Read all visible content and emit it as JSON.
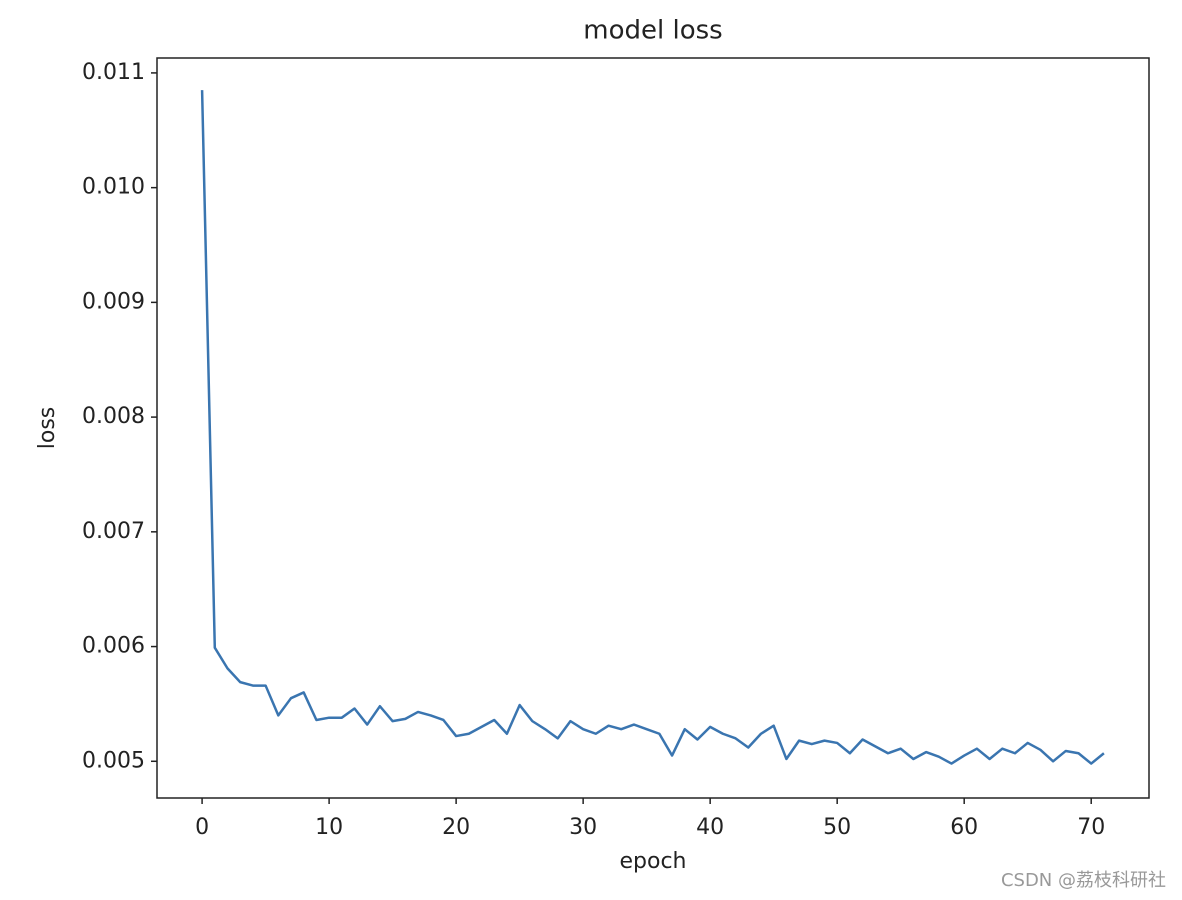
{
  "chart_data": {
    "type": "line",
    "title": "model loss",
    "x_label": "epoch",
    "y_label": "loss",
    "x": [
      0,
      1,
      2,
      3,
      4,
      5,
      6,
      7,
      8,
      9,
      10,
      11,
      12,
      13,
      14,
      15,
      16,
      17,
      18,
      19,
      20,
      21,
      22,
      23,
      24,
      25,
      26,
      27,
      28,
      29,
      30,
      31,
      32,
      33,
      34,
      35,
      36,
      37,
      38,
      39,
      40,
      41,
      42,
      43,
      44,
      45,
      46,
      47,
      48,
      49,
      50,
      51,
      52,
      53,
      54,
      55,
      56,
      57,
      58,
      59,
      60,
      61,
      62,
      63,
      64,
      65,
      66,
      67,
      68,
      69,
      70,
      71
    ],
    "series": [
      {
        "name": "loss",
        "color": "#3a75b0",
        "values": [
          0.01085,
          0.00599,
          0.00581,
          0.00569,
          0.00566,
          0.00566,
          0.0054,
          0.00555,
          0.0056,
          0.00536,
          0.00538,
          0.00538,
          0.00546,
          0.00532,
          0.00548,
          0.00535,
          0.00537,
          0.00543,
          0.0054,
          0.00536,
          0.00522,
          0.00524,
          0.0053,
          0.00536,
          0.00524,
          0.00549,
          0.00535,
          0.00528,
          0.0052,
          0.00535,
          0.00528,
          0.00524,
          0.00531,
          0.00528,
          0.00532,
          0.00528,
          0.00524,
          0.00505,
          0.00528,
          0.00519,
          0.0053,
          0.00524,
          0.0052,
          0.00512,
          0.00524,
          0.00531,
          0.00502,
          0.00518,
          0.00515,
          0.00518,
          0.00516,
          0.00507,
          0.00519,
          0.00513,
          0.00507,
          0.00511,
          0.00502,
          0.00508,
          0.00504,
          0.00498,
          0.00505,
          0.00511,
          0.00502,
          0.00511,
          0.00507,
          0.00516,
          0.0051,
          0.005,
          0.00509,
          0.00507,
          0.00498,
          0.00507
        ]
      }
    ],
    "xlim": [
      -3.55,
      74.55
    ],
    "xticks": [
      0,
      10,
      20,
      30,
      40,
      50,
      60,
      70
    ],
    "ylim": [
      0.00468,
      0.01113
    ],
    "yticks": [
      0.005,
      0.006,
      0.007,
      0.008,
      0.009,
      {
        "value": 0.01,
        "label": "0.010"
      },
      0.011
    ],
    "grid": false
  },
  "watermark": "CSDN @荔枝科研社"
}
